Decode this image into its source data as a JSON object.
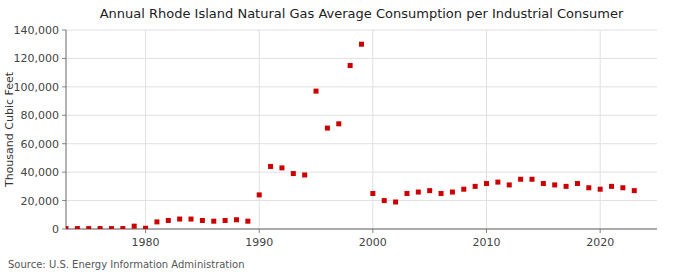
{
  "chart_data": {
    "type": "scatter",
    "title": "Annual Rhode Island Natural Gas Average Consumption per Industrial Consumer",
    "ylabel": "Thousand Cubic Feet",
    "annotations": [
      "Source: U.S. Energy Information Administration"
    ],
    "color": "#cc0000",
    "marker": "square",
    "grid": true,
    "xlim": [
      1973,
      2025
    ],
    "ylim": [
      0,
      140000
    ],
    "xticks": [
      1980,
      1990,
      2000,
      2010,
      2020
    ],
    "yticks": [
      0,
      {
        "value": 20000,
        "label": "20,000"
      },
      {
        "value": 40000,
        "label": "40,000"
      },
      {
        "value": 60000,
        "label": "60,000"
      },
      {
        "value": 80000,
        "label": "80,000"
      },
      {
        "value": 100000,
        "label": "100,000"
      },
      {
        "value": 120000,
        "label": "120,000"
      },
      {
        "value": 140000,
        "label": "140,000"
      }
    ],
    "x": [
      1973,
      1974,
      1975,
      1976,
      1977,
      1978,
      1979,
      1980,
      1981,
      1982,
      1983,
      1984,
      1985,
      1986,
      1987,
      1988,
      1989,
      1990,
      1991,
      1992,
      1993,
      1994,
      1995,
      1996,
      1997,
      1998,
      1999,
      2000,
      2001,
      2002,
      2003,
      2004,
      2005,
      2006,
      2007,
      2008,
      2009,
      2010,
      2011,
      2012,
      2013,
      2014,
      2015,
      2016,
      2017,
      2018,
      2019,
      2020,
      2021,
      2022,
      2023
    ],
    "values": [
      300,
      300,
      300,
      300,
      300,
      300,
      2000,
      500,
      5000,
      6000,
      7000,
      7000,
      6000,
      5500,
      6000,
      6500,
      5500,
      24000,
      44000,
      43000,
      39000,
      38000,
      97000,
      71000,
      74000,
      115000,
      130000,
      25000,
      20000,
      19000,
      25000,
      26000,
      27000,
      25000,
      26000,
      28000,
      30000,
      32000,
      33000,
      31000,
      35000,
      35000,
      32000,
      31000,
      30000,
      32000,
      29000,
      28000,
      30000,
      29000,
      27000
    ]
  }
}
